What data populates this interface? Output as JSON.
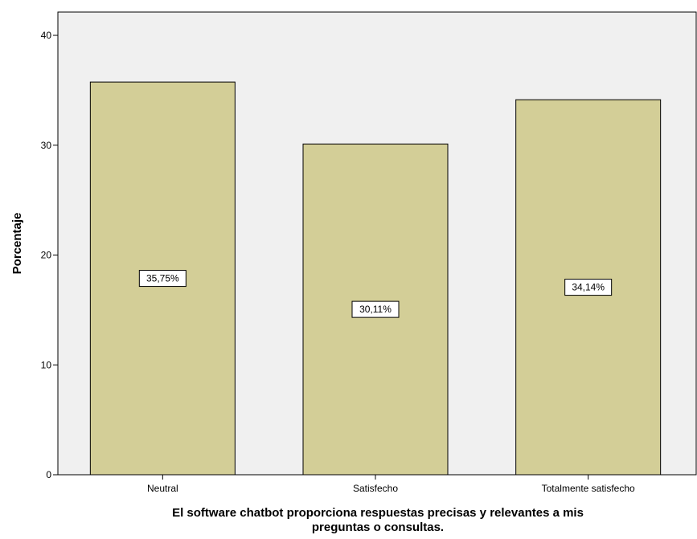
{
  "chart_data": {
    "type": "bar",
    "categories": [
      "Neutral",
      "Satisfecho",
      "Totalmente satisfecho"
    ],
    "values": [
      35.75,
      30.11,
      34.14
    ],
    "data_labels": [
      "35,75%",
      "30,11%",
      "34,14%"
    ],
    "xlabel_lines": [
      "El software chatbot proporciona respuestas precisas y relevantes a mis",
      "preguntas o consultas."
    ],
    "ylabel": "Porcentaje",
    "ylim": [
      0,
      40
    ],
    "yticks": [
      0,
      10,
      20,
      30,
      40
    ],
    "ytick_labels": [
      "0",
      "10",
      "20",
      "30",
      "40"
    ],
    "grid": false,
    "legend": "none",
    "colors": {
      "plot_background": "#f0f0f0",
      "bar_fill": "#d3ce97",
      "bar_stroke": "#000000",
      "label_box_fill": "#ffffff"
    }
  }
}
